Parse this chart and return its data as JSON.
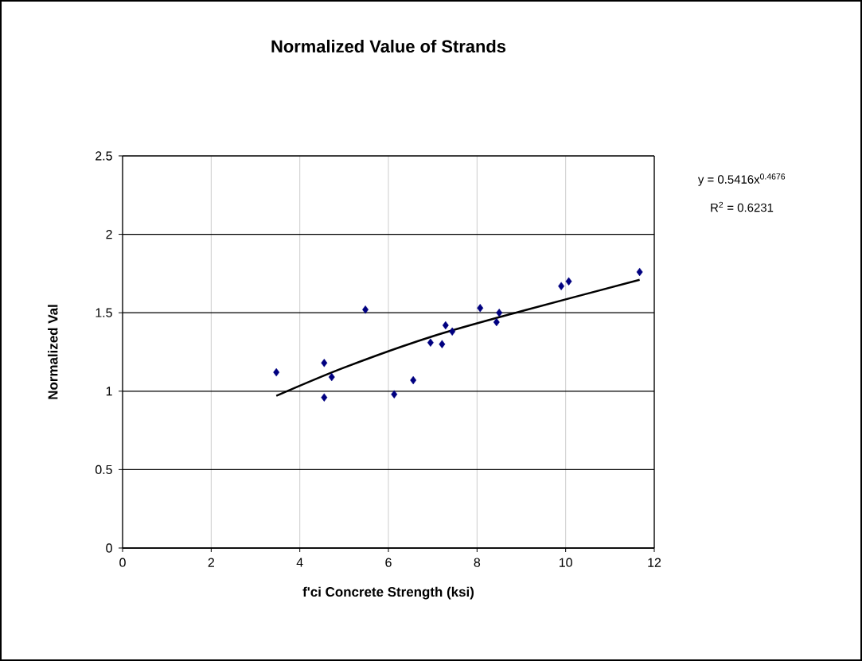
{
  "chart_data": {
    "type": "scatter",
    "title": "Normalized Value of Strands",
    "xlabel": "f'ci Concrete Strength (ksi)",
    "ylabel": "Normalized Val",
    "xlim": [
      0,
      12
    ],
    "ylim": [
      0,
      2.5
    ],
    "xticks": [
      0,
      2,
      4,
      6,
      8,
      10,
      12
    ],
    "yticks": [
      0,
      0.5,
      1,
      1.5,
      2,
      2.5
    ],
    "grid": true,
    "marker": "diamond",
    "annotations": [
      "y = 0.5416x$^{0.4676}$",
      "R$^{2}$ = 0.6231"
    ],
    "series": [
      {
        "color": "#000080",
        "x": [
          3.47,
          4.55,
          4.55,
          4.72,
          5.48,
          6.13,
          6.56,
          6.95,
          7.21,
          7.29,
          7.44,
          8.07,
          8.44,
          8.5,
          9.9,
          10.07,
          11.67
        ],
        "values": [
          1.12,
          1.18,
          0.96,
          1.09,
          1.52,
          0.98,
          1.07,
          1.31,
          1.3,
          1.42,
          1.38,
          1.53,
          1.44,
          1.5,
          1.67,
          1.7,
          1.76
        ]
      },
      {
        "type": "line",
        "color": "#000000",
        "marker": "none",
        "line_style": "solid",
        "x": [
          3.47,
          5,
          7,
          9,
          11.67
        ],
        "values": [
          0.97,
          1.15,
          1.35,
          1.51,
          1.71
        ]
      }
    ]
  }
}
